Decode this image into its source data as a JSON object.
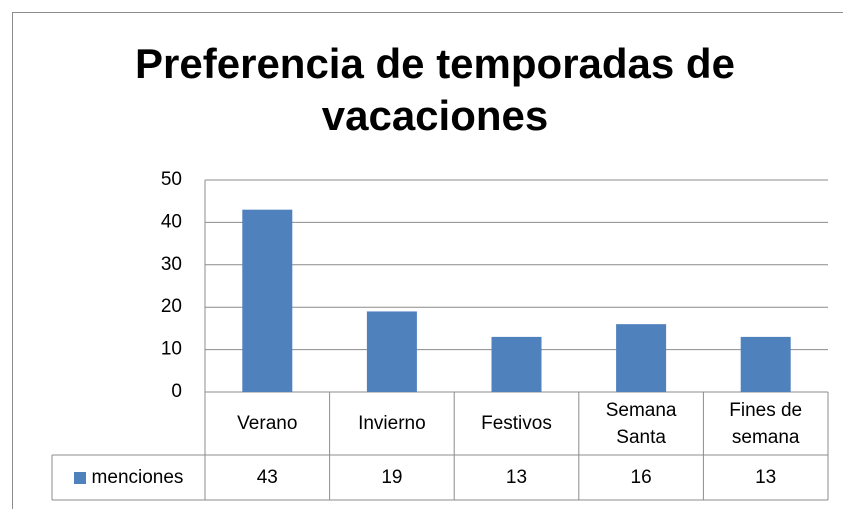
{
  "chart_data": {
    "type": "bar",
    "title": "Preferencia de temporadas de vacaciones",
    "categories": [
      "Verano",
      "Invierno",
      "Festivos",
      "Semana Santa",
      "Fines de semana"
    ],
    "series": [
      {
        "name": "menciones",
        "color": "#4f81bd",
        "values": [
          43,
          19,
          13,
          16,
          13
        ]
      }
    ],
    "ylim": [
      0,
      50
    ],
    "yticks": [
      0,
      10,
      20,
      30,
      40,
      50
    ],
    "grid": true
  }
}
